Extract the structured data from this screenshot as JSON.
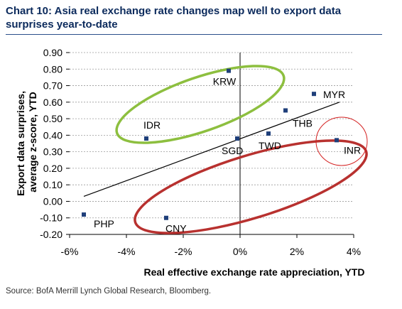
{
  "title": "Chart 10: Asia real exchange rate changes map well to export data surprises year-to-date",
  "source": "Source: BofA Merrill Lynch Global Research, Bloomberg.",
  "chart_data": {
    "type": "scatter",
    "xlabel": "Real effective exchange rate appreciation, YTD",
    "ylabel_lines": [
      "Export data surprises,",
      "average z-score, YTD"
    ],
    "xlim": [
      -6,
      4
    ],
    "ylim": [
      -0.2,
      0.9
    ],
    "x_ticks": [
      -6,
      -4,
      -2,
      0,
      2,
      4
    ],
    "x_tick_labels": [
      "-6%",
      "-4%",
      "-2%",
      "0%",
      "2%",
      "4%"
    ],
    "y_ticks": [
      -0.2,
      -0.1,
      0.0,
      0.1,
      0.2,
      0.3,
      0.4,
      0.5,
      0.6,
      0.7,
      0.8,
      0.9
    ],
    "y_tick_labels": [
      "-0.20",
      "-0.10",
      "0.00",
      "0.10",
      "0.20",
      "0.30",
      "0.40",
      "0.50",
      "0.60",
      "0.70",
      "0.80",
      "0.90"
    ],
    "grid": true,
    "points": [
      {
        "label": "KRW",
        "x": -0.4,
        "y": 0.79
      },
      {
        "label": "MYR",
        "x": 2.6,
        "y": 0.65
      },
      {
        "label": "THB",
        "x": 1.6,
        "y": 0.55
      },
      {
        "label": "IDR",
        "x": -3.3,
        "y": 0.38
      },
      {
        "label": "TWD",
        "x": 1.0,
        "y": 0.41
      },
      {
        "label": "SGD",
        "x": -0.1,
        "y": 0.38
      },
      {
        "label": "INR",
        "x": 3.4,
        "y": 0.37
      },
      {
        "label": "PHP",
        "x": -5.5,
        "y": -0.08
      },
      {
        "label": "CNY",
        "x": -2.6,
        "y": -0.1
      }
    ],
    "trendline": {
      "x": [
        -5.5,
        3.5
      ],
      "y": [
        0.03,
        0.6
      ]
    },
    "marker_color": "#1f3f7a",
    "highlight_colors": {
      "green": "#8dbf3f",
      "red": "#b8312f",
      "thin_red": "#d42020"
    }
  }
}
